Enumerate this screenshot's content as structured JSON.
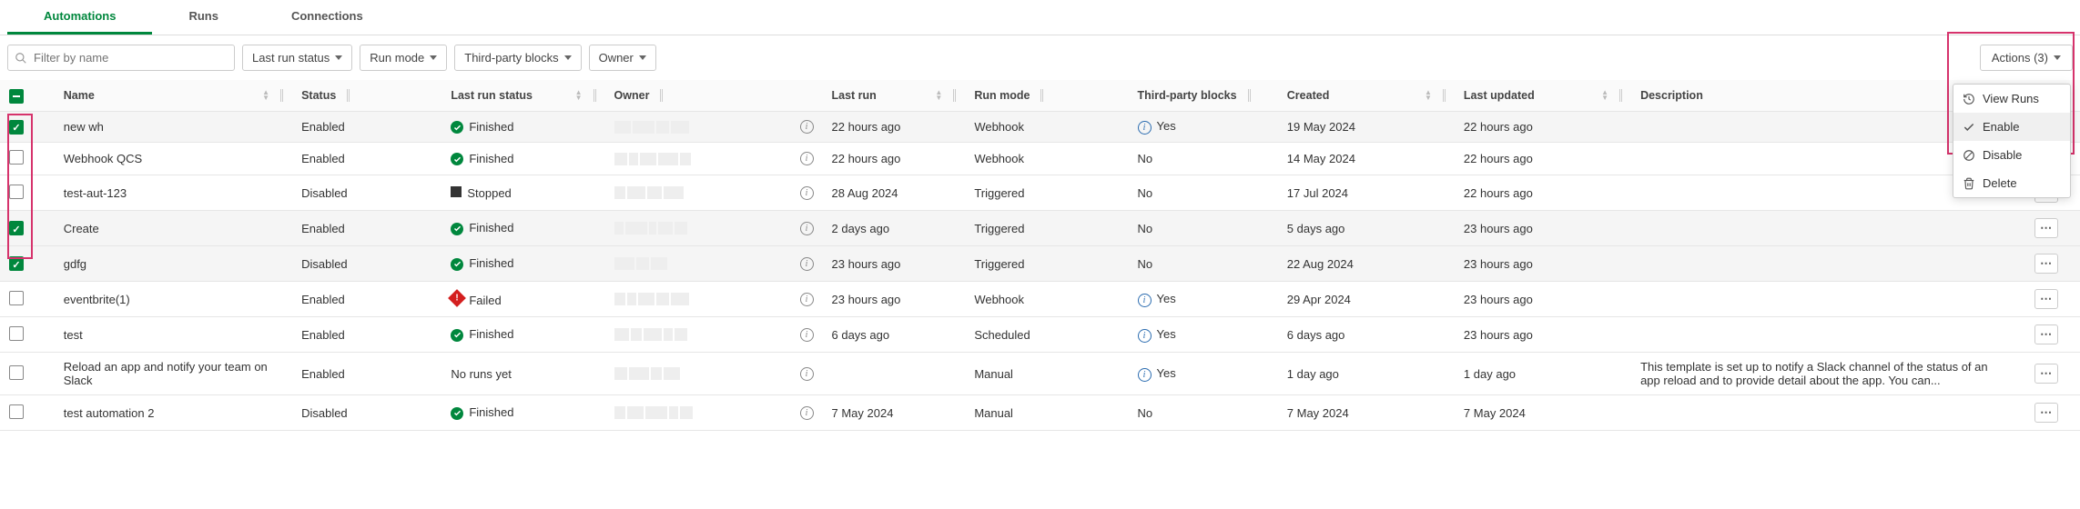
{
  "tabs": {
    "automations": "Automations",
    "runs": "Runs",
    "connections": "Connections"
  },
  "toolbar": {
    "search_placeholder": "Filter by name",
    "filter_lastrun": "Last run status",
    "filter_runmode": "Run mode",
    "filter_tpb": "Third-party blocks",
    "filter_owner": "Owner",
    "actions_label": "Actions (3)"
  },
  "actions_menu": {
    "view_runs": "View Runs",
    "enable": "Enable",
    "disable": "Disable",
    "delete": "Delete"
  },
  "columns": {
    "name": "Name",
    "status": "Status",
    "last_run_status": "Last run status",
    "owner": "Owner",
    "last_run": "Last run",
    "run_mode": "Run mode",
    "tpb": "Third-party blocks",
    "created": "Created",
    "last_updated": "Last updated",
    "description": "Description"
  },
  "rows": [
    {
      "selected": true,
      "name": "new wh",
      "status": "Enabled",
      "run_status": "Finished",
      "run_status_type": "finished",
      "owner_blur": [
        18,
        24,
        14,
        20
      ],
      "last_run": "22 hours ago",
      "run_mode": "Webhook",
      "tpb": "Yes",
      "tpb_info": true,
      "created": "19 May 2024",
      "updated": "22 hours ago",
      "desc": "",
      "show_ellipsis": false
    },
    {
      "selected": false,
      "name": "Webhook QCS",
      "status": "Enabled",
      "run_status": "Finished",
      "run_status_type": "finished",
      "owner_blur": [
        14,
        10,
        18,
        22,
        12
      ],
      "last_run": "22 hours ago",
      "run_mode": "Webhook",
      "tpb": "No",
      "tpb_info": false,
      "created": "14 May 2024",
      "updated": "22 hours ago",
      "desc": "",
      "show_ellipsis": false
    },
    {
      "selected": false,
      "name": "test-aut-123",
      "status": "Disabled",
      "run_status": "Stopped",
      "run_status_type": "stopped",
      "owner_blur": [
        12,
        20,
        16,
        22
      ],
      "last_run": "28 Aug 2024",
      "run_mode": "Triggered",
      "tpb": "No",
      "tpb_info": false,
      "created": "17 Jul 2024",
      "updated": "22 hours ago",
      "desc": "",
      "show_ellipsis": true
    },
    {
      "selected": true,
      "name": "Create",
      "status": "Enabled",
      "run_status": "Finished",
      "run_status_type": "finished",
      "owner_blur": [
        10,
        24,
        8,
        16,
        14
      ],
      "last_run": "2 days ago",
      "run_mode": "Triggered",
      "tpb": "No",
      "tpb_info": false,
      "created": "5 days ago",
      "updated": "23 hours ago",
      "desc": "",
      "show_ellipsis": true
    },
    {
      "selected": true,
      "name": "gdfg",
      "status": "Disabled",
      "run_status": "Finished",
      "run_status_type": "finished",
      "owner_blur": [
        22,
        14,
        18
      ],
      "last_run": "23 hours ago",
      "run_mode": "Triggered",
      "tpb": "No",
      "tpb_info": false,
      "created": "22 Aug 2024",
      "updated": "23 hours ago",
      "desc": "",
      "show_ellipsis": true
    },
    {
      "selected": false,
      "name": "eventbrite(1)",
      "status": "Enabled",
      "run_status": "Failed",
      "run_status_type": "failed",
      "owner_blur": [
        12,
        10,
        18,
        14,
        20
      ],
      "last_run": "23 hours ago",
      "run_mode": "Webhook",
      "tpb": "Yes",
      "tpb_info": true,
      "created": "29 Apr 2024",
      "updated": "23 hours ago",
      "desc": "",
      "show_ellipsis": true
    },
    {
      "selected": false,
      "name": "test",
      "status": "Enabled",
      "run_status": "Finished",
      "run_status_type": "finished",
      "owner_blur": [
        16,
        12,
        20,
        10,
        14
      ],
      "last_run": "6 days ago",
      "run_mode": "Scheduled",
      "tpb": "Yes",
      "tpb_info": true,
      "created": "6 days ago",
      "updated": "23 hours ago",
      "desc": "",
      "show_ellipsis": true
    },
    {
      "selected": false,
      "name": "Reload an app and notify your team on Slack",
      "status": "Enabled",
      "run_status": "No runs yet",
      "run_status_type": "none",
      "owner_blur": [
        14,
        22,
        12,
        18
      ],
      "last_run": "",
      "run_mode": "Manual",
      "tpb": "Yes",
      "tpb_info": true,
      "created": "1 day ago",
      "updated": "1 day ago",
      "desc": "This template is set up to notify a Slack channel of the status of an app reload and to provide detail about the app. You can...",
      "show_ellipsis": true
    },
    {
      "selected": false,
      "name": "test automation 2",
      "status": "Disabled",
      "run_status": "Finished",
      "run_status_type": "finished",
      "owner_blur": [
        12,
        18,
        24,
        10,
        14
      ],
      "last_run": "7 May 2024",
      "run_mode": "Manual",
      "tpb": "No",
      "tpb_info": false,
      "created": "7 May 2024",
      "updated": "7 May 2024",
      "desc": "",
      "show_ellipsis": true
    }
  ],
  "colors": {
    "accent_green": "#00873d",
    "fail_red": "#d41f1f",
    "highlight_pink": "#d6336c",
    "info_blue": "#2b6cb0"
  }
}
